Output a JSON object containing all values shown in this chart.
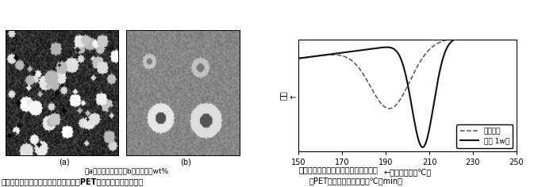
{
  "fig_width": 6.78,
  "fig_height": 2.36,
  "dpi": 100,
  "left_panel": {
    "img_a_label": "(a)",
    "img_b_label": "(b)",
    "caption_sub": "（a）；核剤なし，（b）；核剤１wt%",
    "caption_main": "図１　結晶核剤の球晶形成への効果（PET，偏光顕微鏡暗視野）"
  },
  "right_panel": {
    "xlim": [
      150,
      250
    ],
    "xticks": [
      150,
      170,
      190,
      210,
      230,
      250
    ],
    "xlabel": "←　走査温度（℃）",
    "ylabel": "発熱\n↑",
    "title2": "図２　結晶核剤の結晶化温度への効果",
    "title2_sub": "（PET，　冷却速度；１０℃／min）",
    "legend_dashed": "核剤なし",
    "legend_solid": "核剤 1w％",
    "bg_color": "#ffffff",
    "line_color": "#333333"
  }
}
